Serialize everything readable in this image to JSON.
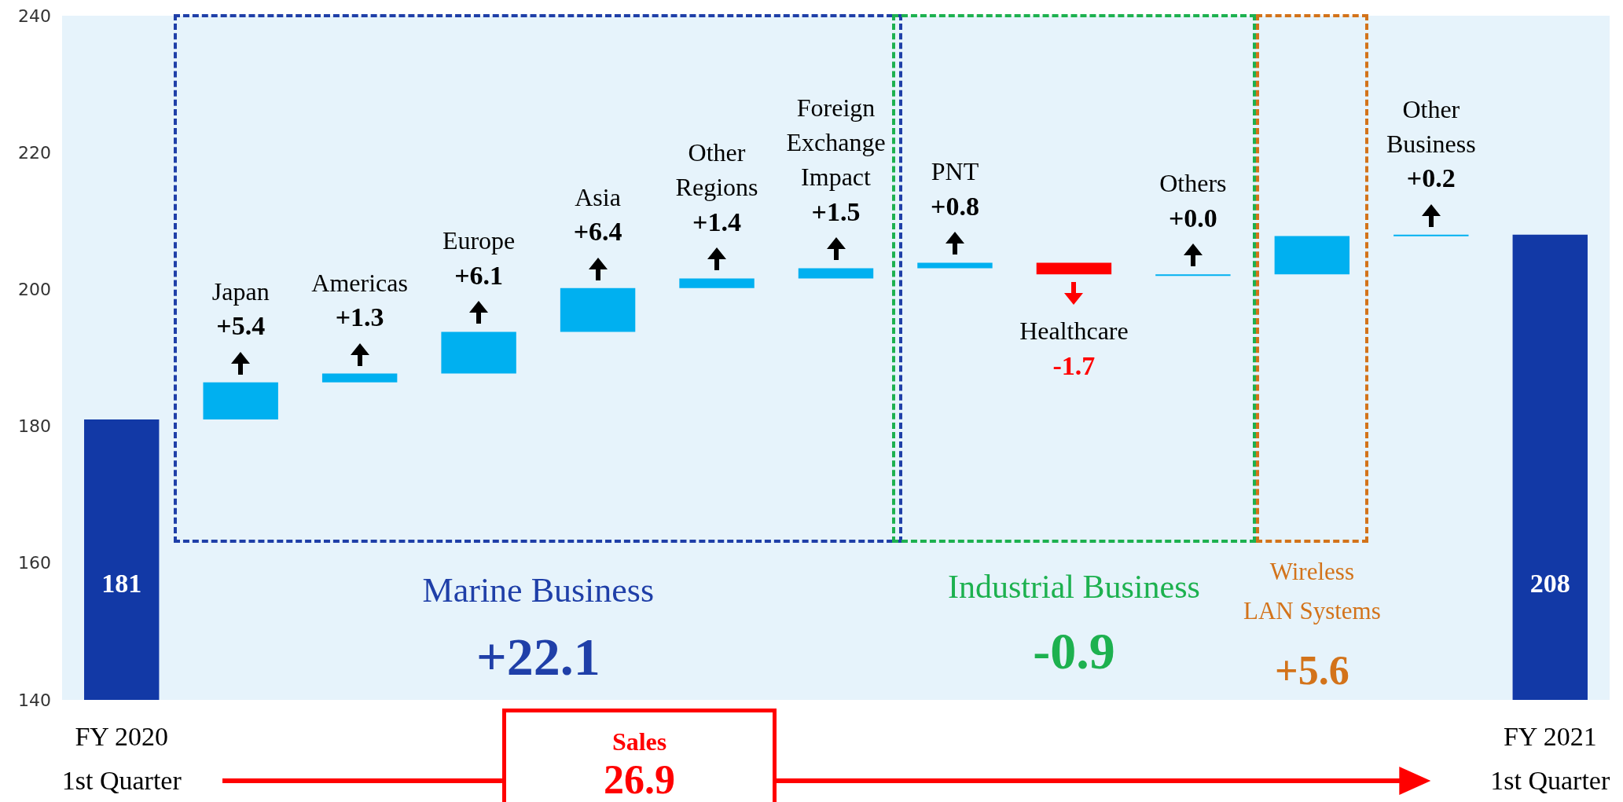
{
  "chart_data": {
    "type": "bar",
    "categories": [
      "FY 2020 1st Quarter",
      "Japan",
      "Americas",
      "Europe",
      "Asia",
      "Other Regions",
      "Foreign Exchange Impact",
      "PNT",
      "Healthcare",
      "Others",
      null,
      "Other Business",
      "FY 2021 1st Quarter"
    ],
    "values": [
      181,
      5.4,
      1.3,
      6.1,
      6.4,
      1.4,
      1.5,
      0.8,
      -1.7,
      0.0,
      5.6,
      0.2,
      208
    ],
    "base": [
      null,
      181,
      186.4,
      187.7,
      193.8,
      200.2,
      201.6,
      203.1,
      203.9,
      202.2,
      202.2,
      207.8,
      null
    ],
    "colors": [
      "#1239a6",
      "#00b0f0",
      "#00b0f0",
      "#00b0f0",
      "#00b0f0",
      "#00b0f0",
      "#00b0f0",
      "#00b0f0",
      "#ff0000",
      "#00b0f0",
      "#00b0f0",
      "#00b0f0",
      "#1239a6"
    ],
    "value_labels": [
      "181",
      "+5.4",
      "+1.3",
      "+6.1",
      "+6.4",
      "+1.4",
      "+1.5",
      "+0.8",
      "-1.7",
      "+0.0",
      null,
      "+0.2",
      "208"
    ],
    "annotations": [
      "Marine Business",
      "+22.1",
      "Industrial Business",
      "-0.9",
      "Wireless LAN Systems",
      "+5.6",
      "Sales",
      "26.9"
    ],
    "ylim": [
      140,
      240
    ],
    "yticks": [
      140,
      160,
      180,
      200,
      220,
      240
    ]
  }
}
